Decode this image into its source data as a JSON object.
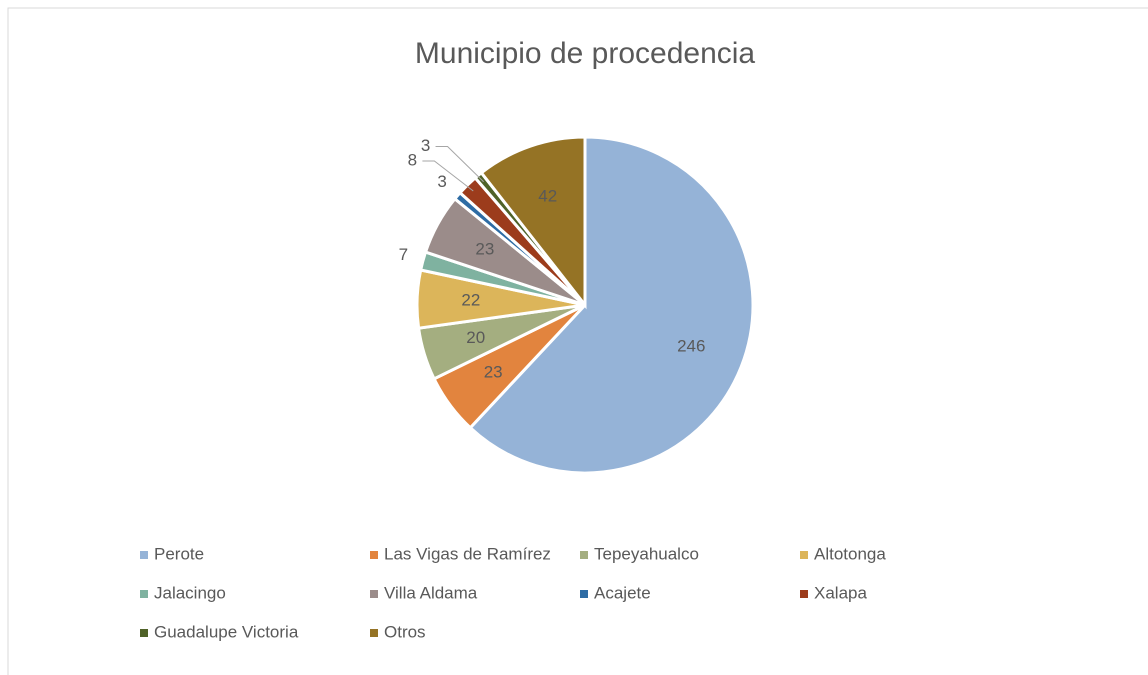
{
  "chart_data": {
    "type": "pie",
    "title": "Municipio de procedencia",
    "categories": [
      "Perote",
      "Las Vigas de Ramírez",
      "Tepeyahualco",
      "Altotonga",
      "Jalacingo",
      "Villa Aldama",
      "Acajete",
      "Xalapa",
      "Guadalupe Victoria",
      "Otros"
    ],
    "values": [
      246,
      23,
      20,
      22,
      7,
      23,
      3,
      8,
      3,
      42
    ],
    "colors": [
      "#95b3d7",
      "#e2843e",
      "#a4ae80",
      "#dcb55a",
      "#7fb2a0",
      "#9b8c8a",
      "#2e6ca4",
      "#9c3c1c",
      "#4f6228",
      "#957325"
    ],
    "legend": "bottom"
  }
}
